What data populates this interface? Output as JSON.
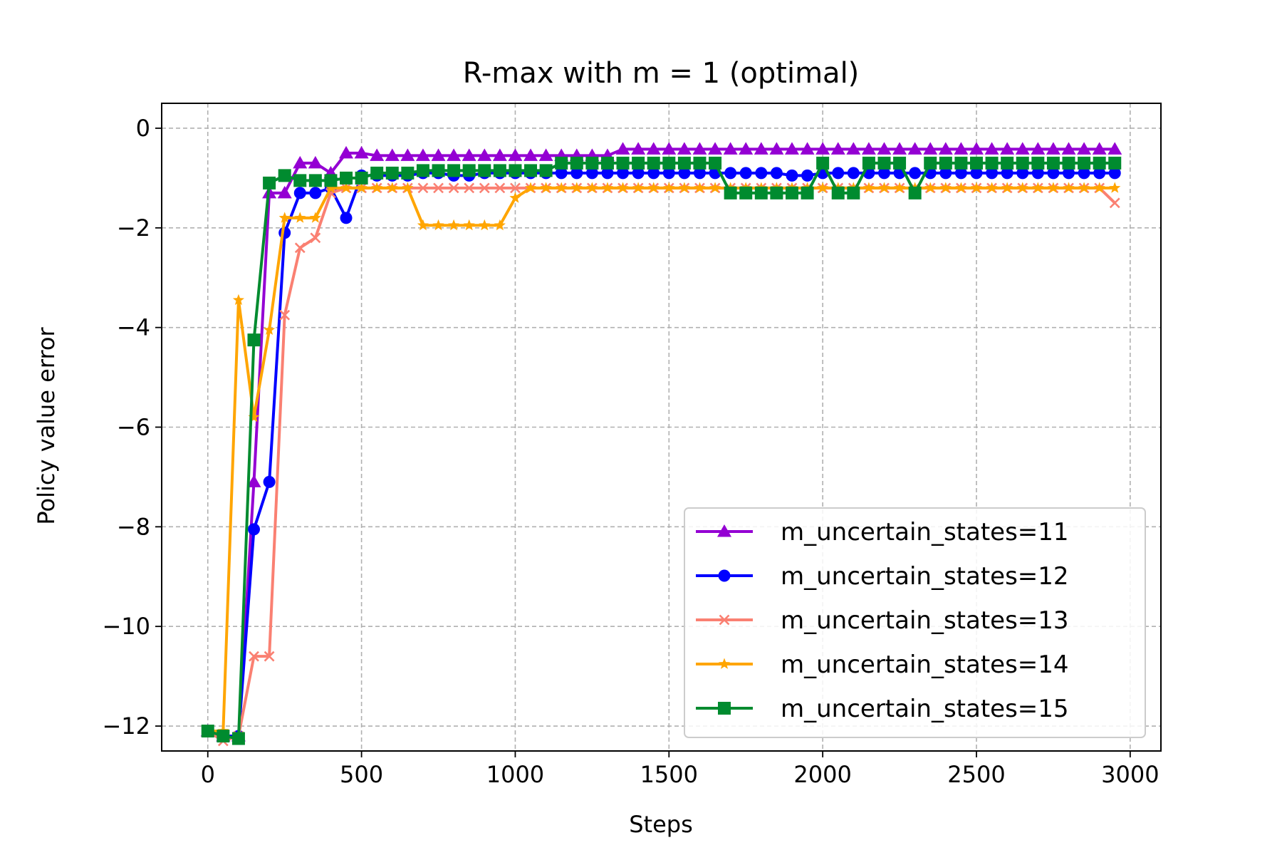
{
  "chart_data": {
    "type": "line",
    "title": "R-max with m = 1 (optimal)",
    "xlabel": "Steps",
    "ylabel": "Policy value error",
    "xlim": [
      -150,
      3100
    ],
    "ylim": [
      -12.5,
      0.5
    ],
    "xticks": [
      0,
      500,
      1000,
      1500,
      2000,
      2500,
      3000
    ],
    "xtick_labels": [
      "0",
      "500",
      "1000",
      "1500",
      "2000",
      "2500",
      "3000"
    ],
    "yticks": [
      0,
      -2,
      -4,
      -6,
      -8,
      -10,
      -12
    ],
    "ytick_labels": [
      "0",
      "−2",
      "−4",
      "−6",
      "−8",
      "−10",
      "−12"
    ],
    "grid": true,
    "legend_position": "lower-right",
    "x": [
      0,
      50,
      100,
      150,
      200,
      250,
      300,
      350,
      400,
      450,
      500,
      550,
      600,
      650,
      700,
      750,
      800,
      850,
      900,
      950,
      1000,
      1050,
      1100,
      1150,
      1200,
      1250,
      1300,
      1350,
      1400,
      1450,
      1500,
      1550,
      1600,
      1650,
      1700,
      1750,
      1800,
      1850,
      1900,
      1950,
      2000,
      2050,
      2100,
      2150,
      2200,
      2250,
      2300,
      2350,
      2400,
      2450,
      2500,
      2550,
      2600,
      2650,
      2700,
      2750,
      2800,
      2850,
      2900,
      2950
    ],
    "series": [
      {
        "name": "m_uncertain_states=11",
        "color": "#9400d3",
        "marker": "triangle",
        "values": [
          -12.1,
          -12.2,
          -12.2,
          -7.1,
          -1.3,
          -1.3,
          -0.7,
          -0.7,
          -0.9,
          -0.5,
          -0.5,
          -0.55,
          -0.55,
          -0.55,
          -0.55,
          -0.55,
          -0.55,
          -0.55,
          -0.55,
          -0.55,
          -0.55,
          -0.55,
          -0.55,
          -0.55,
          -0.55,
          -0.55,
          -0.55,
          -0.42,
          -0.42,
          -0.42,
          -0.42,
          -0.42,
          -0.42,
          -0.42,
          -0.42,
          -0.42,
          -0.42,
          -0.42,
          -0.42,
          -0.42,
          -0.42,
          -0.42,
          -0.42,
          -0.42,
          -0.42,
          -0.42,
          -0.42,
          -0.42,
          -0.42,
          -0.42,
          -0.42,
          -0.42,
          -0.42,
          -0.42,
          -0.42,
          -0.42,
          -0.42,
          -0.42,
          -0.42,
          -0.42
        ]
      },
      {
        "name": "m_uncertain_states=12",
        "color": "#0000ff",
        "marker": "circle",
        "values": [
          -12.1,
          -12.2,
          -12.2,
          -8.05,
          -7.1,
          -2.1,
          -1.3,
          -1.3,
          -1.2,
          -1.8,
          -0.95,
          -0.95,
          -0.95,
          -0.95,
          -0.9,
          -0.9,
          -0.95,
          -0.95,
          -0.9,
          -0.9,
          -0.9,
          -0.9,
          -0.9,
          -0.9,
          -0.9,
          -0.9,
          -0.9,
          -0.9,
          -0.9,
          -0.9,
          -0.9,
          -0.9,
          -0.9,
          -0.9,
          -0.9,
          -0.9,
          -0.9,
          -0.9,
          -0.95,
          -0.95,
          -0.9,
          -0.9,
          -0.9,
          -0.9,
          -0.9,
          -0.9,
          -0.9,
          -0.9,
          -0.9,
          -0.9,
          -0.9,
          -0.9,
          -0.9,
          -0.9,
          -0.9,
          -0.9,
          -0.9,
          -0.9,
          -0.9,
          -0.9
        ]
      },
      {
        "name": "m_uncertain_states=13",
        "color": "#fa8072",
        "marker": "x",
        "values": [
          -12.1,
          -12.3,
          -12.2,
          -10.6,
          -10.6,
          -3.75,
          -2.4,
          -2.2,
          -1.3,
          -1.2,
          -1.2,
          -1.2,
          -1.2,
          -1.2,
          -1.2,
          -1.2,
          -1.2,
          -1.2,
          -1.2,
          -1.2,
          -1.2,
          -1.2,
          -1.2,
          -1.2,
          -1.2,
          -1.2,
          -1.2,
          -1.2,
          -1.2,
          -1.2,
          -1.2,
          -1.2,
          -1.2,
          -1.2,
          -1.2,
          -1.2,
          -1.2,
          -1.2,
          -1.2,
          -1.2,
          -1.2,
          -1.2,
          -1.2,
          -1.2,
          -1.2,
          -1.2,
          -1.2,
          -1.2,
          -1.2,
          -1.2,
          -1.2,
          -1.2,
          -1.2,
          -1.2,
          -1.2,
          -1.2,
          -1.2,
          -1.2,
          -1.2,
          -1.5
        ]
      },
      {
        "name": "m_uncertain_states=14",
        "color": "#ffa500",
        "marker": "star",
        "values": [
          -12.1,
          -12.1,
          -3.45,
          -5.8,
          -4.05,
          -1.8,
          -1.8,
          -1.8,
          -1.2,
          -1.2,
          -1.2,
          -1.2,
          -1.2,
          -1.2,
          -1.95,
          -1.95,
          -1.95,
          -1.95,
          -1.95,
          -1.95,
          -1.4,
          -1.2,
          -1.2,
          -1.2,
          -1.2,
          -1.2,
          -1.2,
          -1.2,
          -1.2,
          -1.2,
          -1.2,
          -1.2,
          -1.2,
          -1.2,
          -1.2,
          -1.2,
          -1.2,
          -1.2,
          -1.2,
          -1.2,
          -1.2,
          -1.2,
          -1.2,
          -1.2,
          -1.2,
          -1.2,
          -1.2,
          -1.2,
          -1.2,
          -1.2,
          -1.2,
          -1.2,
          -1.2,
          -1.2,
          -1.2,
          -1.2,
          -1.2,
          -1.2,
          -1.2,
          -1.2
        ]
      },
      {
        "name": "m_uncertain_states=15",
        "color": "#008b2f",
        "marker": "square",
        "values": [
          -12.1,
          -12.2,
          -12.25,
          -4.25,
          -1.1,
          -0.95,
          -1.05,
          -1.05,
          -1.05,
          -1.0,
          -1.0,
          -0.9,
          -0.9,
          -0.9,
          -0.85,
          -0.85,
          -0.85,
          -0.85,
          -0.85,
          -0.85,
          -0.85,
          -0.85,
          -0.85,
          -0.7,
          -0.7,
          -0.7,
          -0.7,
          -0.7,
          -0.7,
          -0.7,
          -0.7,
          -0.7,
          -0.7,
          -0.7,
          -1.3,
          -1.3,
          -1.3,
          -1.3,
          -1.3,
          -1.3,
          -0.7,
          -1.3,
          -1.3,
          -0.7,
          -0.7,
          -0.7,
          -1.3,
          -0.7,
          -0.7,
          -0.7,
          -0.7,
          -0.7,
          -0.7,
          -0.7,
          -0.7,
          -0.7,
          -0.7,
          -0.7,
          -0.7,
          -0.7
        ]
      }
    ]
  }
}
